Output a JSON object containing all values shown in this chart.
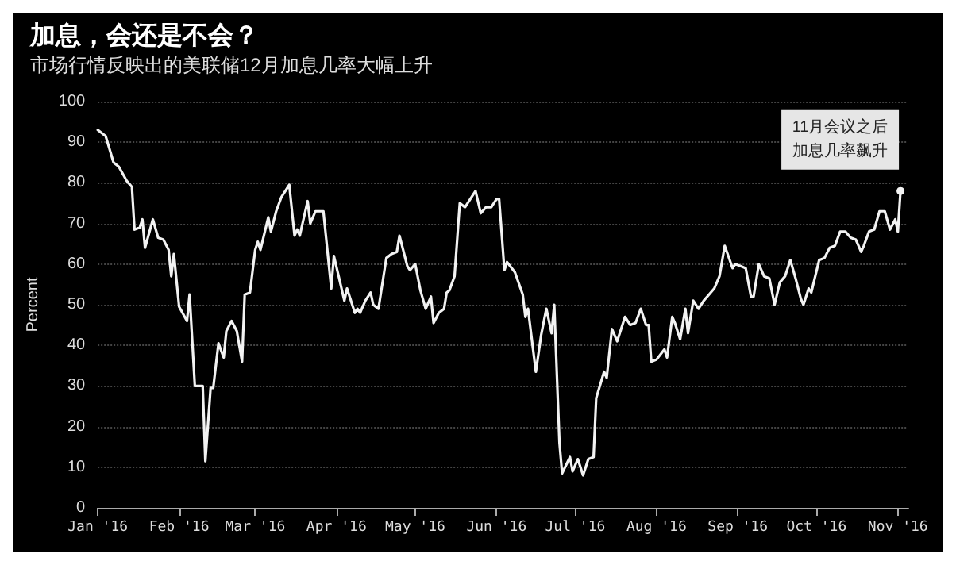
{
  "chart_data": {
    "type": "line",
    "title": "加息，会还是不会？",
    "subtitle": "市场行情反映出的美联储12月加息几率大幅上升",
    "ylabel": "Percent",
    "x": [
      "2016-01-01",
      "2016-01-04",
      "2016-01-07",
      "2016-01-09",
      "2016-01-12",
      "2016-01-14",
      "2016-01-15",
      "2016-01-17",
      "2016-01-18",
      "2016-01-19",
      "2016-01-22",
      "2016-01-24",
      "2016-01-26",
      "2016-01-28",
      "2016-01-29",
      "2016-01-30",
      "2016-02-01",
      "2016-02-04",
      "2016-02-05",
      "2016-02-07",
      "2016-02-10",
      "2016-02-11",
      "2016-02-13",
      "2016-02-14",
      "2016-02-16",
      "2016-02-18",
      "2016-02-19",
      "2016-02-21",
      "2016-02-23",
      "2016-02-25",
      "2016-02-26",
      "2016-02-28",
      "2016-03-01",
      "2016-03-02",
      "2016-03-03",
      "2016-03-06",
      "2016-03-07",
      "2016-03-09",
      "2016-03-11",
      "2016-03-14",
      "2016-03-16",
      "2016-03-17",
      "2016-03-18",
      "2016-03-21",
      "2016-03-22",
      "2016-03-24",
      "2016-03-27",
      "2016-03-30",
      "2016-03-31",
      "2016-04-02",
      "2016-04-04",
      "2016-04-05",
      "2016-04-08",
      "2016-04-09",
      "2016-04-10",
      "2016-04-12",
      "2016-04-14",
      "2016-04-15",
      "2016-04-17",
      "2016-04-20",
      "2016-04-22",
      "2016-04-24",
      "2016-04-25",
      "2016-04-28",
      "2016-04-29",
      "2016-05-01",
      "2016-05-03",
      "2016-05-05",
      "2016-05-07",
      "2016-05-08",
      "2016-05-10",
      "2016-05-12",
      "2016-05-13",
      "2016-05-14",
      "2016-05-16",
      "2016-05-18",
      "2016-05-20",
      "2016-05-24",
      "2016-05-26",
      "2016-05-28",
      "2016-05-30",
      "2016-06-01",
      "2016-06-02",
      "2016-06-04",
      "2016-06-05",
      "2016-06-08",
      "2016-06-11",
      "2016-06-12",
      "2016-06-13",
      "2016-06-16",
      "2016-06-18",
      "2016-06-20",
      "2016-06-22",
      "2016-06-23",
      "2016-06-25",
      "2016-06-26",
      "2016-06-29",
      "2016-06-30",
      "2016-07-02",
      "2016-07-04",
      "2016-07-06",
      "2016-07-08",
      "2016-07-09",
      "2016-07-12",
      "2016-07-13",
      "2016-07-15",
      "2016-07-17",
      "2016-07-20",
      "2016-07-22",
      "2016-07-24",
      "2016-07-26",
      "2016-07-28",
      "2016-07-29",
      "2016-07-30",
      "2016-08-01",
      "2016-08-04",
      "2016-08-05",
      "2016-08-07",
      "2016-08-08",
      "2016-08-10",
      "2016-08-12",
      "2016-08-13",
      "2016-08-15",
      "2016-08-17",
      "2016-08-19",
      "2016-08-21",
      "2016-08-23",
      "2016-08-25",
      "2016-08-27",
      "2016-08-30",
      "2016-08-31",
      "2016-09-02",
      "2016-09-04",
      "2016-09-06",
      "2016-09-07",
      "2016-09-09",
      "2016-09-11",
      "2016-09-13",
      "2016-09-15",
      "2016-09-17",
      "2016-09-19",
      "2016-09-21",
      "2016-09-23",
      "2016-09-25",
      "2016-09-26",
      "2016-09-28",
      "2016-09-29",
      "2016-10-02",
      "2016-10-04",
      "2016-10-06",
      "2016-10-08",
      "2016-10-10",
      "2016-10-12",
      "2016-10-14",
      "2016-10-16",
      "2016-10-18",
      "2016-10-19",
      "2016-10-21",
      "2016-10-23",
      "2016-10-25",
      "2016-10-27",
      "2016-10-29",
      "2016-10-31",
      "2016-11-01",
      "2016-11-02"
    ],
    "series": [
      {
        "color": "#f2f2f2",
        "values": [
          93,
          91.5,
          85,
          84,
          80.5,
          79,
          68.5,
          69,
          71,
          64,
          71,
          66.5,
          66,
          63.5,
          57,
          62.5,
          49.5,
          46,
          52.5,
          30,
          30,
          11.5,
          29.5,
          29.5,
          40.5,
          37,
          43.5,
          46,
          43.5,
          36,
          52.5,
          53,
          63.5,
          65.5,
          63.5,
          71.5,
          68,
          73,
          76.5,
          79.5,
          67,
          68.5,
          67,
          75.5,
          70,
          73,
          73,
          54,
          62,
          56.5,
          51,
          54,
          48,
          49,
          48,
          51,
          53,
          50,
          49,
          61.5,
          62.5,
          63,
          67,
          59.5,
          58.5,
          60,
          53.5,
          49,
          52,
          45.5,
          48,
          49,
          53,
          53.5,
          57,
          75,
          74,
          78,
          72.5,
          74,
          74,
          76,
          76,
          58.5,
          60.5,
          58,
          52.5,
          47,
          49,
          33.5,
          42.5,
          49,
          43,
          50,
          16,
          8.5,
          12.5,
          9,
          12,
          8,
          12,
          12.5,
          27,
          33.5,
          32,
          44,
          41,
          47,
          45,
          45.5,
          49,
          45,
          45,
          36,
          36.5,
          39,
          37,
          47,
          45.5,
          41.5,
          49,
          43,
          51,
          49,
          51,
          52.5,
          54,
          57,
          64.5,
          59,
          60,
          59.5,
          59,
          52,
          52,
          60,
          57,
          56.5,
          50,
          55.5,
          57,
          61,
          56.5,
          51.5,
          50,
          54,
          53,
          61,
          61.5,
          64,
          64.5,
          68,
          68,
          66.5,
          66,
          63,
          64.5,
          68,
          68.5,
          73,
          73,
          68.5,
          71,
          68,
          78
        ]
      }
    ],
    "xlim": [
      "2016-01-01",
      "2016-11-05"
    ],
    "xticks": [
      {
        "value": "2016-01-01",
        "label": "Jan '16"
      },
      {
        "value": "2016-02-01",
        "label": "Feb '16"
      },
      {
        "value": "2016-03-01",
        "label": "Mar '16"
      },
      {
        "value": "2016-04-01",
        "label": "Apr '16"
      },
      {
        "value": "2016-05-01",
        "label": "May '16"
      },
      {
        "value": "2016-06-01",
        "label": "Jun '16"
      },
      {
        "value": "2016-07-01",
        "label": "Jul '16"
      },
      {
        "value": "2016-08-01",
        "label": "Aug '16"
      },
      {
        "value": "2016-09-01",
        "label": "Sep '16"
      },
      {
        "value": "2016-10-01",
        "label": "Oct '16"
      },
      {
        "value": "2016-11-01",
        "label": "Nov '16"
      }
    ],
    "ylim": [
      0,
      100
    ],
    "yticks": [
      0,
      10,
      20,
      30,
      40,
      50,
      60,
      70,
      80,
      90,
      100
    ],
    "grid": "y",
    "marker": "none",
    "line_style": "solid",
    "annotations": [
      {
        "text": "11月会议之后加息几率飙升",
        "x": "2016-11-02",
        "y": 78
      }
    ]
  }
}
